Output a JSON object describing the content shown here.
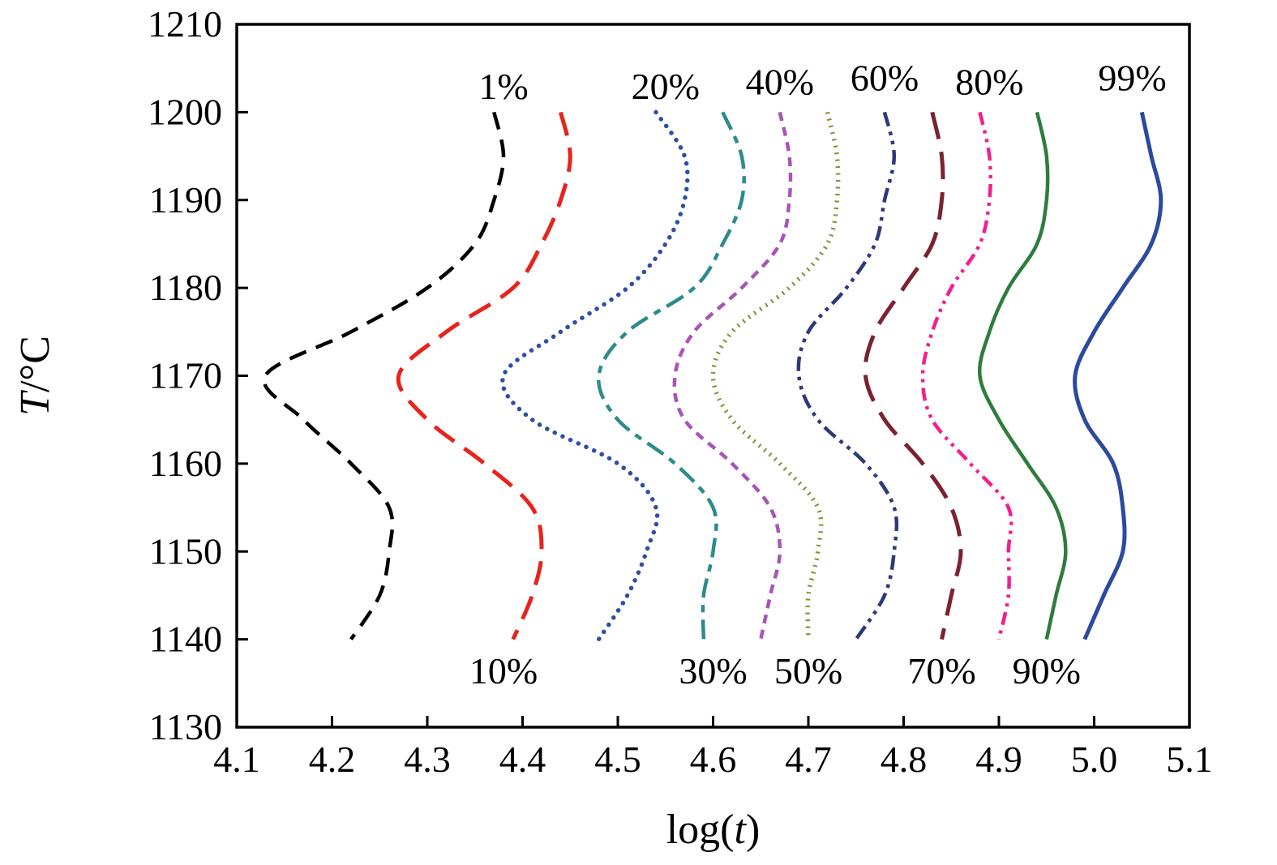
{
  "chart_data": {
    "type": "line",
    "title": "",
    "xlabel": "log(t)",
    "ylabel": "T/°C",
    "xlabel_parts": [
      {
        "text": "log(",
        "italic": false
      },
      {
        "text": "t",
        "italic": true
      },
      {
        "text": ")",
        "italic": false
      }
    ],
    "ylabel_parts": [
      {
        "text": "T",
        "italic": true
      },
      {
        "text": "/°C",
        "italic": false
      }
    ],
    "xlim": [
      4.1,
      5.1
    ],
    "ylim": [
      1130,
      1210
    ],
    "grid": false,
    "legend": "curve labels inline (top and bottom of each curve)",
    "x_ticks": [
      {
        "v": 4.1,
        "label": "4.1"
      },
      {
        "v": 4.2,
        "label": "4.2"
      },
      {
        "v": 4.3,
        "label": "4.3"
      },
      {
        "v": 4.4,
        "label": "4.4"
      },
      {
        "v": 4.5,
        "label": "4.5"
      },
      {
        "v": 4.6,
        "label": "4.6"
      },
      {
        "v": 4.7,
        "label": "4.7"
      },
      {
        "v": 4.8,
        "label": "4.8"
      },
      {
        "v": 4.9,
        "label": "4.9"
      },
      {
        "v": 5.0,
        "label": "5.0"
      },
      {
        "v": 5.1,
        "label": "5.1"
      }
    ],
    "y_ticks": [
      {
        "v": 1130,
        "label": "1130"
      },
      {
        "v": 1140,
        "label": "1140"
      },
      {
        "v": 1150,
        "label": "1150"
      },
      {
        "v": 1160,
        "label": "1160"
      },
      {
        "v": 1170,
        "label": "1170"
      },
      {
        "v": 1180,
        "label": "1180"
      },
      {
        "v": 1190,
        "label": "1190"
      },
      {
        "v": 1200,
        "label": "1200"
      },
      {
        "v": 1210,
        "label": "1210"
      }
    ],
    "y_values_T": [
      1200,
      1195,
      1190,
      1185,
      1180,
      1175,
      1170,
      1165,
      1160,
      1155,
      1150,
      1145,
      1140
    ],
    "series": [
      {
        "id": "p1",
        "name": "1%",
        "color": "#000000",
        "dash": "22 13",
        "cap": "butt",
        "width": 4.5,
        "x": [
          4.37,
          4.38,
          4.37,
          4.35,
          4.3,
          4.22,
          4.13,
          4.17,
          4.22,
          4.26,
          4.26,
          4.25,
          4.22
        ],
        "label": {
          "text": "1%",
          "x": 4.38,
          "y": 1201.5,
          "placement": "top"
        }
      },
      {
        "id": "p10",
        "name": "10%",
        "color": "#e8231d",
        "dash": "30 15",
        "cap": "butt",
        "width": 5,
        "x": [
          4.44,
          4.45,
          4.44,
          4.42,
          4.39,
          4.32,
          4.27,
          4.3,
          4.36,
          4.41,
          4.42,
          4.41,
          4.39
        ],
        "label": {
          "text": "10%",
          "x": 4.38,
          "y": 1135,
          "placement": "bottom"
        }
      },
      {
        "id": "p20",
        "name": "20%",
        "color": "#2d4fa1",
        "dash": "0.1 10.5",
        "cap": "round",
        "width": 5.5,
        "x": [
          4.54,
          4.57,
          4.57,
          4.55,
          4.51,
          4.44,
          4.38,
          4.41,
          4.5,
          4.54,
          4.53,
          4.51,
          4.48
        ],
        "label": {
          "text": "20%",
          "x": 4.55,
          "y": 1201.5,
          "placement": "top"
        }
      },
      {
        "id": "p30",
        "name": "30%",
        "color": "#2e8b8b",
        "dash": "24 9 9 9",
        "cap": "butt",
        "width": 4.5,
        "x": [
          4.61,
          4.63,
          4.63,
          4.61,
          4.58,
          4.51,
          4.48,
          4.5,
          4.56,
          4.6,
          4.6,
          4.59,
          4.59
        ],
        "label": {
          "text": "30%",
          "x": 4.6,
          "y": 1135,
          "placement": "bottom"
        }
      },
      {
        "id": "p40",
        "name": "40%",
        "color": "#a855b8",
        "dash": "11 8",
        "cap": "butt",
        "width": 4.5,
        "x": [
          4.67,
          4.68,
          4.68,
          4.67,
          4.63,
          4.58,
          4.56,
          4.57,
          4.62,
          4.66,
          4.67,
          4.66,
          4.65
        ],
        "label": {
          "text": "40%",
          "x": 4.67,
          "y": 1202,
          "placement": "top"
        }
      },
      {
        "id": "p50",
        "name": "50%",
        "color": "#8b8b2e",
        "dash": "2 6.5",
        "cap": "butt",
        "width": 5.5,
        "x": [
          4.72,
          4.73,
          4.73,
          4.72,
          4.68,
          4.62,
          4.6,
          4.62,
          4.67,
          4.71,
          4.71,
          4.7,
          4.7
        ],
        "label": {
          "text": "50%",
          "x": 4.7,
          "y": 1135,
          "placement": "bottom"
        }
      },
      {
        "id": "p60",
        "name": "60%",
        "color": "#2b3a78",
        "dash": "18 7 4.5 7 4.5 7",
        "cap": "butt",
        "width": 4.5,
        "x": [
          4.78,
          4.79,
          4.78,
          4.77,
          4.74,
          4.7,
          4.69,
          4.71,
          4.76,
          4.79,
          4.79,
          4.78,
          4.75
        ],
        "label": {
          "text": "60%",
          "x": 4.78,
          "y": 1202.5,
          "placement": "top"
        }
      },
      {
        "id": "p70",
        "name": "70%",
        "color": "#7b2230",
        "dash": "34 16",
        "cap": "butt",
        "width": 5,
        "x": [
          4.83,
          4.84,
          4.84,
          4.83,
          4.8,
          4.77,
          4.76,
          4.78,
          4.82,
          4.85,
          4.86,
          4.85,
          4.84
        ],
        "label": {
          "text": "70%",
          "x": 4.84,
          "y": 1135,
          "placement": "bottom"
        }
      },
      {
        "id": "p80",
        "name": "80%",
        "color": "#f0208f",
        "dash": "16 7 4 7 4 7",
        "cap": "butt",
        "width": 4.5,
        "x": [
          4.88,
          4.89,
          4.89,
          4.88,
          4.85,
          4.83,
          4.82,
          4.83,
          4.87,
          4.91,
          4.91,
          4.91,
          4.9
        ],
        "label": {
          "text": "80%",
          "x": 4.89,
          "y": 1202,
          "placement": "top"
        }
      },
      {
        "id": "p90",
        "name": "90%",
        "color": "#2e7d3c",
        "dash": "",
        "cap": "butt",
        "width": 4.5,
        "x": [
          4.94,
          4.95,
          4.95,
          4.94,
          4.91,
          4.89,
          4.88,
          4.9,
          4.93,
          4.96,
          4.97,
          4.96,
          4.95
        ],
        "label": {
          "text": "90%",
          "x": 4.95,
          "y": 1135,
          "placement": "bottom"
        }
      },
      {
        "id": "p99",
        "name": "99%",
        "color": "#2c4a9e",
        "dash": "",
        "cap": "butt",
        "width": 5,
        "x": [
          5.05,
          5.06,
          5.07,
          5.06,
          5.03,
          5.0,
          4.98,
          4.99,
          5.02,
          5.03,
          5.03,
          5.01,
          4.99
        ],
        "label": {
          "text": "99%",
          "x": 5.04,
          "y": 1202.5,
          "placement": "top"
        }
      }
    ]
  }
}
